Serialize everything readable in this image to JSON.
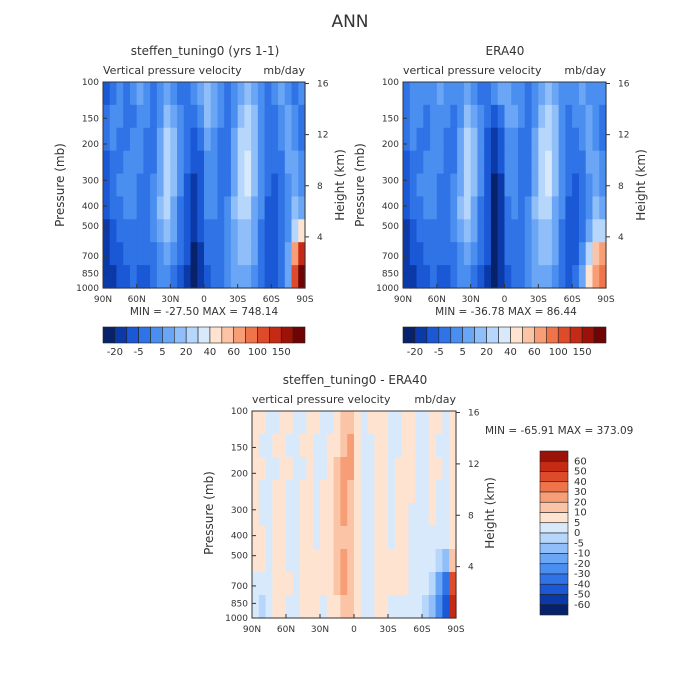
{
  "title": "ANN",
  "palettes": {
    "full": [
      "#08216b",
      "#0b3aa8",
      "#1a58d6",
      "#2f73e6",
      "#4a8ef0",
      "#6aa6f5",
      "#8fbef8",
      "#b6d6fb",
      "#d9e9fc",
      "#fde3d0",
      "#fbc4a6",
      "#f89e76",
      "#f0744a",
      "#de4b2a",
      "#c42a14",
      "#9c1208",
      "#6e0404"
    ],
    "diff": [
      "#08216b",
      "#0b3aa8",
      "#1a58d6",
      "#2f73e6",
      "#4a8ef0",
      "#6aa6f5",
      "#8fbef8",
      "#b6d6fb",
      "#d9e9fc",
      "#fde3d0",
      "#fbc4a6",
      "#f89e76",
      "#f0744a",
      "#de4b2a",
      "#c42a14",
      "#9c1208"
    ]
  },
  "chart_data": [
    {
      "type": "heatmap",
      "id": "model",
      "title": "steffen_tuning0 (yrs 1-1)",
      "subtitle_left": "Vertical pressure velocity",
      "subtitle_right": "mb/day",
      "xlabel": "",
      "ylabel": "Pressure (mb)",
      "ylabel_right": "Height (km)",
      "x_ticks": [
        "90N",
        "60N",
        "30N",
        "0",
        "30S",
        "60S",
        "90S"
      ],
      "y_ticks": [
        1000,
        850,
        700,
        500,
        400,
        300,
        200,
        150,
        100
      ],
      "y_ticks_right": [
        4,
        8,
        12,
        16
      ],
      "xlim": [
        90,
        -90
      ],
      "ylim": [
        1000,
        100
      ],
      "stats_text": "MIN = -27.50   MAX = 748.14",
      "min": -27.5,
      "max": 748.14,
      "colorbar_labels": [
        "-20",
        "-5",
        "5",
        "20",
        "40",
        "60",
        "100",
        "150"
      ],
      "palette": "full",
      "cell_levels": [
        [
          2,
          3,
          4,
          3,
          4,
          5,
          4,
          3,
          4,
          5,
          4,
          3,
          3,
          4,
          5,
          6,
          5,
          4,
          3,
          4,
          5,
          6,
          5,
          4,
          3,
          4,
          5,
          4,
          3,
          4
        ],
        [
          3,
          4,
          4,
          3,
          3,
          4,
          4,
          3,
          4,
          6,
          5,
          4,
          3,
          3,
          4,
          6,
          5,
          4,
          3,
          4,
          6,
          7,
          6,
          4,
          3,
          3,
          4,
          5,
          4,
          3
        ],
        [
          3,
          4,
          3,
          3,
          4,
          4,
          3,
          3,
          5,
          7,
          6,
          4,
          3,
          2,
          3,
          5,
          4,
          3,
          3,
          5,
          7,
          7,
          6,
          4,
          3,
          3,
          4,
          5,
          4,
          3
        ],
        [
          2,
          3,
          3,
          4,
          4,
          4,
          3,
          3,
          5,
          7,
          6,
          4,
          3,
          2,
          2,
          4,
          4,
          3,
          3,
          5,
          7,
          8,
          6,
          4,
          3,
          3,
          3,
          5,
          5,
          4
        ],
        [
          2,
          3,
          4,
          4,
          4,
          3,
          3,
          4,
          5,
          7,
          6,
          4,
          2,
          1,
          2,
          4,
          4,
          3,
          3,
          5,
          7,
          8,
          6,
          4,
          3,
          2,
          3,
          4,
          5,
          4
        ],
        [
          2,
          3,
          3,
          4,
          4,
          3,
          3,
          4,
          6,
          7,
          5,
          3,
          2,
          1,
          2,
          4,
          4,
          3,
          4,
          6,
          7,
          7,
          5,
          4,
          2,
          2,
          3,
          4,
          6,
          5
        ],
        [
          1,
          2,
          3,
          3,
          3,
          3,
          3,
          4,
          5,
          6,
          5,
          3,
          2,
          1,
          2,
          3,
          3,
          3,
          4,
          5,
          6,
          6,
          5,
          3,
          2,
          2,
          3,
          4,
          7,
          9
        ],
        [
          1,
          2,
          2,
          3,
          3,
          3,
          3,
          3,
          4,
          5,
          4,
          3,
          2,
          0,
          1,
          3,
          3,
          3,
          4,
          5,
          6,
          6,
          5,
          3,
          2,
          2,
          3,
          5,
          11,
          14
        ],
        [
          1,
          1,
          2,
          2,
          3,
          2,
          2,
          3,
          4,
          4,
          3,
          2,
          1,
          0,
          1,
          2,
          3,
          3,
          4,
          5,
          5,
          5,
          4,
          3,
          2,
          2,
          3,
          5,
          13,
          16
        ]
      ]
    },
    {
      "type": "heatmap",
      "id": "obs",
      "title": "ERA40",
      "subtitle_left": "vertical pressure velocity",
      "subtitle_right": "mb/day",
      "xlabel": "",
      "ylabel": "Pressure (mb)",
      "ylabel_right": "Height (km)",
      "x_ticks": [
        "90N",
        "60N",
        "30N",
        "0",
        "30S",
        "60S",
        "90S"
      ],
      "y_ticks": [
        1000,
        850,
        700,
        500,
        400,
        300,
        200,
        150,
        100
      ],
      "y_ticks_right": [
        4,
        8,
        12,
        16
      ],
      "xlim": [
        90,
        -90
      ],
      "ylim": [
        1000,
        100
      ],
      "stats_text": "MIN = -36.78   MAX = 86.44",
      "min": -36.78,
      "max": 86.44,
      "colorbar_labels": [
        "-20",
        "-5",
        "5",
        "20",
        "40",
        "60",
        "100",
        "150"
      ],
      "palette": "full",
      "cell_levels": [
        [
          3,
          4,
          4,
          4,
          4,
          5,
          4,
          4,
          4,
          5,
          4,
          3,
          3,
          4,
          5,
          5,
          4,
          4,
          3,
          4,
          5,
          6,
          5,
          4,
          4,
          4,
          5,
          4,
          4,
          4
        ],
        [
          3,
          4,
          4,
          3,
          4,
          4,
          4,
          3,
          4,
          6,
          5,
          4,
          3,
          2,
          3,
          5,
          5,
          4,
          3,
          4,
          6,
          7,
          6,
          4,
          3,
          4,
          4,
          5,
          4,
          3
        ],
        [
          3,
          4,
          3,
          3,
          4,
          4,
          3,
          3,
          5,
          7,
          6,
          4,
          2,
          1,
          2,
          4,
          4,
          3,
          3,
          5,
          7,
          7,
          6,
          4,
          3,
          3,
          4,
          5,
          4,
          3
        ],
        [
          2,
          3,
          3,
          4,
          4,
          4,
          3,
          3,
          5,
          7,
          6,
          4,
          2,
          1,
          2,
          4,
          4,
          3,
          3,
          5,
          7,
          8,
          6,
          4,
          3,
          3,
          3,
          5,
          5,
          4
        ],
        [
          2,
          3,
          4,
          4,
          4,
          3,
          3,
          4,
          5,
          7,
          6,
          4,
          2,
          0,
          1,
          4,
          4,
          3,
          3,
          5,
          7,
          8,
          6,
          4,
          3,
          2,
          3,
          4,
          5,
          4
        ],
        [
          2,
          3,
          3,
          4,
          4,
          3,
          3,
          4,
          6,
          7,
          5,
          3,
          2,
          0,
          1,
          3,
          4,
          3,
          4,
          6,
          7,
          7,
          5,
          4,
          2,
          2,
          3,
          4,
          6,
          5
        ],
        [
          1,
          2,
          3,
          3,
          3,
          3,
          3,
          4,
          5,
          6,
          5,
          3,
          2,
          0,
          1,
          3,
          3,
          3,
          4,
          5,
          6,
          6,
          5,
          3,
          2,
          2,
          3,
          5,
          7,
          7
        ],
        [
          1,
          2,
          2,
          3,
          3,
          3,
          3,
          3,
          4,
          5,
          4,
          3,
          2,
          0,
          1,
          3,
          3,
          3,
          4,
          5,
          6,
          6,
          5,
          3,
          2,
          2,
          4,
          7,
          10,
          11
        ],
        [
          1,
          1,
          2,
          2,
          3,
          2,
          2,
          3,
          4,
          4,
          3,
          2,
          1,
          0,
          1,
          2,
          3,
          3,
          4,
          5,
          5,
          5,
          4,
          3,
          2,
          3,
          5,
          9,
          11,
          12
        ]
      ]
    },
    {
      "type": "heatmap",
      "id": "diff",
      "title": "steffen_tuning0 - ERA40",
      "subtitle_left": "vertical pressure velocity",
      "subtitle_right": "mb/day",
      "xlabel": "",
      "ylabel": "Pressure (mb)",
      "ylabel_right": "Height (km)",
      "x_ticks": [
        "90N",
        "60N",
        "30N",
        "0",
        "30S",
        "60S",
        "90S"
      ],
      "y_ticks": [
        1000,
        850,
        700,
        500,
        400,
        300,
        200,
        150,
        100
      ],
      "y_ticks_right": [
        4,
        8,
        12,
        16
      ],
      "xlim": [
        90,
        -90
      ],
      "ylim": [
        1000,
        100
      ],
      "stats_text": "MIN = -65.91   MAX = 373.09",
      "min": -65.91,
      "max": 373.09,
      "colorbar_labels": [
        "60",
        "50",
        "40",
        "30",
        "20",
        "10",
        "5",
        "0",
        "-5",
        "-10",
        "-20",
        "-30",
        "-40",
        "-50",
        "-60"
      ],
      "palette": "diff",
      "cell_levels": [
        [
          9,
          9,
          8,
          8,
          9,
          9,
          8,
          8,
          9,
          9,
          8,
          8,
          9,
          10,
          10,
          9,
          8,
          9,
          9,
          9,
          8,
          8,
          9,
          9,
          8,
          8,
          9,
          9,
          8,
          9
        ],
        [
          9,
          8,
          8,
          9,
          9,
          8,
          8,
          9,
          9,
          8,
          8,
          9,
          9,
          10,
          11,
          9,
          8,
          8,
          9,
          9,
          8,
          8,
          9,
          9,
          8,
          8,
          9,
          8,
          8,
          9
        ],
        [
          9,
          9,
          8,
          8,
          9,
          9,
          8,
          8,
          9,
          8,
          8,
          9,
          10,
          11,
          11,
          9,
          8,
          8,
          9,
          9,
          8,
          9,
          9,
          9,
          8,
          8,
          9,
          9,
          8,
          9
        ],
        [
          9,
          8,
          8,
          9,
          9,
          8,
          8,
          9,
          9,
          8,
          9,
          9,
          10,
          11,
          10,
          9,
          8,
          8,
          9,
          9,
          8,
          9,
          9,
          9,
          8,
          8,
          9,
          8,
          8,
          9
        ],
        [
          9,
          8,
          8,
          9,
          9,
          8,
          8,
          9,
          9,
          8,
          9,
          9,
          10,
          11,
          10,
          9,
          8,
          8,
          9,
          9,
          8,
          9,
          9,
          8,
          8,
          8,
          9,
          8,
          8,
          9
        ],
        [
          9,
          9,
          8,
          9,
          9,
          8,
          8,
          9,
          9,
          8,
          9,
          9,
          10,
          10,
          10,
          9,
          8,
          8,
          9,
          9,
          8,
          9,
          9,
          8,
          8,
          8,
          8,
          8,
          8,
          9
        ],
        [
          9,
          9,
          8,
          9,
          9,
          8,
          8,
          9,
          9,
          9,
          9,
          9,
          10,
          11,
          10,
          9,
          8,
          8,
          9,
          9,
          9,
          9,
          9,
          8,
          8,
          8,
          8,
          7,
          6,
          10
        ],
        [
          8,
          8,
          8,
          9,
          9,
          9,
          8,
          9,
          9,
          9,
          9,
          9,
          10,
          11,
          10,
          9,
          8,
          8,
          9,
          9,
          9,
          9,
          9,
          8,
          8,
          8,
          7,
          5,
          3,
          13
        ],
        [
          8,
          7,
          8,
          9,
          9,
          8,
          8,
          9,
          9,
          9,
          8,
          9,
          9,
          10,
          10,
          9,
          8,
          8,
          9,
          9,
          8,
          8,
          8,
          8,
          8,
          7,
          6,
          4,
          2,
          14
        ]
      ]
    }
  ]
}
